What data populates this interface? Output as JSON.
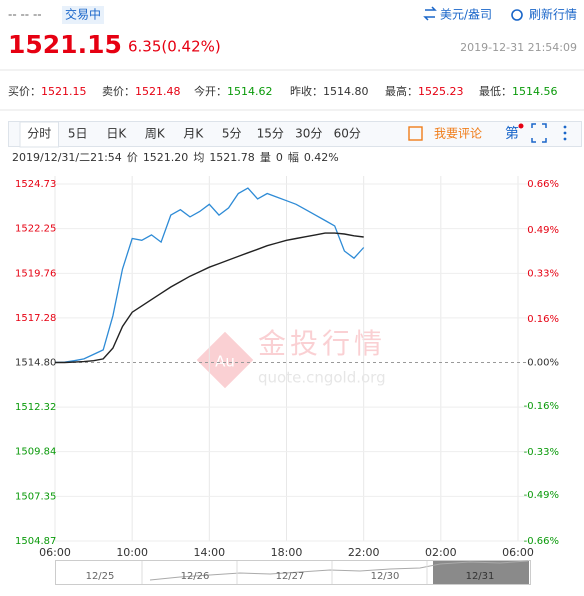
{
  "header": {
    "name": "-- -- --",
    "status": "交易中",
    "unit": "美元/盎司",
    "refresh": "刷新行情",
    "price": "1521.15",
    "change": "6.35(0.42%)",
    "time": "2019-12-31 21:54:09"
  },
  "quotes": [
    {
      "label": "买价：",
      "value": "1521.15",
      "color": "#e60012"
    },
    {
      "label": "卖价：",
      "value": "1521.48",
      "color": "#e60012"
    },
    {
      "label": "今开：",
      "value": "1514.62",
      "color": "#0a9a0a"
    },
    {
      "label": "昨收：",
      "value": "1514.80",
      "color": "#333333"
    },
    {
      "label": "最高：",
      "value": "1525.23",
      "color": "#e60012"
    },
    {
      "label": "最低：",
      "value": "1514.56",
      "color": "#0a9a0a"
    }
  ],
  "tabs": {
    "items": [
      "分时",
      "5日",
      "日K",
      "周K",
      "月K",
      "5分",
      "15分",
      "30分",
      "60分"
    ],
    "active": 0,
    "comment": "我要评论",
    "more": "第"
  },
  "info": [
    "2019/12/31/二21:54",
    "价",
    "1521.20",
    "均",
    "1521.78",
    "量",
    "0",
    "幅",
    "0.42%"
  ],
  "watermark": {
    "badge": "Au",
    "name": "金投行情",
    "site": "quote.cngold.org"
  },
  "chart_data": {
    "type": "line",
    "x": [
      0,
      0.5,
      1,
      1.5,
      2,
      2.5,
      3,
      3.5,
      4,
      4.5,
      5,
      5.5,
      6,
      6.5,
      7,
      7.5,
      8,
      8.5,
      9,
      9.5,
      10,
      10.5,
      11,
      11.5,
      12,
      12.5,
      13,
      13.5,
      14,
      14.5,
      15,
      15.5,
      16
    ],
    "series": [
      {
        "name": "价",
        "color": "#2e8bd6",
        "values": [
          1514.8,
          1514.82,
          1514.9,
          1515.0,
          1515.25,
          1515.5,
          1517.4,
          1520.0,
          1521.7,
          1521.6,
          1521.9,
          1521.5,
          1523.0,
          1523.3,
          1522.9,
          1523.2,
          1523.6,
          1523.0,
          1523.4,
          1524.2,
          1524.5,
          1523.9,
          1524.2,
          1524.0,
          1523.8,
          1523.6,
          1523.3,
          1523.0,
          1522.7,
          1522.4,
          1521.0,
          1520.6,
          1521.2
        ]
      },
      {
        "name": "均",
        "color": "#222222",
        "values": [
          1514.8,
          1514.8,
          1514.82,
          1514.85,
          1514.9,
          1515.0,
          1515.6,
          1516.8,
          1517.6,
          1517.95,
          1518.3,
          1518.65,
          1519.0,
          1519.3,
          1519.6,
          1519.85,
          1520.1,
          1520.3,
          1520.5,
          1520.7,
          1520.9,
          1521.1,
          1521.3,
          1521.45,
          1521.6,
          1521.7,
          1521.8,
          1521.9,
          1522.0,
          1522.0,
          1521.95,
          1521.85,
          1521.78
        ]
      }
    ],
    "xlim": [
      0,
      24
    ],
    "xticks": [
      {
        "value": 0,
        "label": "06:00"
      },
      {
        "value": 4,
        "label": "10:00"
      },
      {
        "value": 8,
        "label": "14:00"
      },
      {
        "value": 12,
        "label": "18:00"
      },
      {
        "value": 16,
        "label": "22:00"
      },
      {
        "value": 20,
        "label": "02:00"
      },
      {
        "value": 24,
        "label": "06:00"
      }
    ],
    "ylim": [
      1504.87,
      1524.73
    ],
    "yticks": [
      1524.73,
      1522.25,
      1519.76,
      1517.28,
      {
        "value": 1514.8,
        "label": "1514.80"
      },
      1512.32,
      1509.84,
      1507.35,
      1504.87
    ],
    "y2lim": [
      -0.66,
      0.66
    ],
    "y2ticks": [
      {
        "value": 0.66,
        "label": "0.66%"
      },
      {
        "value": 0.49,
        "label": "0.49%"
      },
      {
        "value": 0.33,
        "label": "0.33%"
      },
      {
        "value": 0.16,
        "label": "0.16%"
      },
      {
        "value": 0,
        "label": "0.00%"
      },
      {
        "value": -0.16,
        "label": "-0.16%"
      },
      {
        "value": -0.33,
        "label": "-0.33%"
      },
      {
        "value": -0.49,
        "label": "-0.49%"
      },
      {
        "value": -0.66,
        "label": "-0.66%"
      }
    ],
    "grid": true,
    "navigator": [
      "12/25",
      "12/26",
      "12/27",
      "12/30",
      "12/31"
    ]
  }
}
